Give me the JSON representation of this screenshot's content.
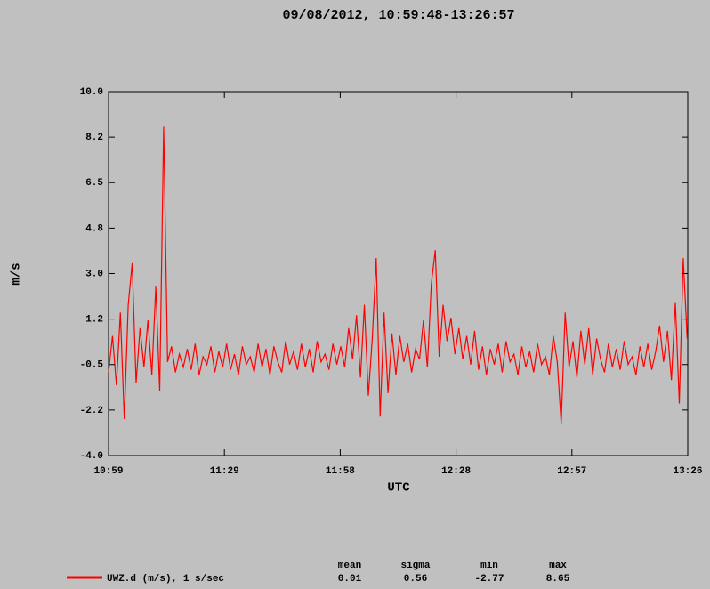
{
  "chart_data": {
    "type": "line",
    "title": "09/08/2012, 10:59:48-13:26:57",
    "x_label": "UTC",
    "y_label": "m/s",
    "x": [
      659.8,
      660.8,
      661.8,
      662.8,
      663.8,
      664.8,
      665.8,
      666.8,
      667.8,
      668.8,
      669.8,
      670.8,
      671.8,
      672.8,
      673.8,
      674.8,
      675.8,
      676.8,
      677.8,
      678.8,
      679.8,
      680.8,
      681.8,
      682.8,
      683.8,
      684.8,
      685.8,
      686.8,
      687.8,
      688.8,
      689.8,
      690.8,
      691.8,
      692.8,
      693.8,
      694.8,
      695.8,
      696.8,
      697.8,
      698.8,
      699.8,
      700.8,
      701.8,
      702.8,
      703.8,
      704.8,
      705.8,
      706.8,
      707.8,
      708.8,
      709.8,
      710.8,
      711.8,
      712.8,
      713.8,
      714.8,
      715.8,
      716.8,
      717.8,
      718.8,
      719.8,
      720.8,
      721.8,
      722.8,
      723.8,
      724.8,
      725.8,
      726.8,
      727.8,
      728.8,
      729.8,
      730.8,
      731.8,
      732.8,
      733.8,
      734.8,
      735.8,
      736.8,
      737.8,
      738.8,
      739.8,
      740.8,
      741.8,
      742.8,
      743.8,
      744.8,
      745.8,
      746.8,
      747.8,
      748.8,
      749.8,
      750.8,
      751.8,
      752.8,
      753.8,
      754.8,
      755.8,
      756.8,
      757.8,
      758.8,
      759.8,
      760.8,
      761.8,
      762.8,
      763.8,
      764.8,
      765.8,
      766.8,
      767.8,
      768.8,
      769.8,
      770.8,
      771.8,
      772.8,
      773.8,
      774.8,
      775.8,
      776.8,
      777.8,
      778.8,
      779.8,
      780.8,
      781.8,
      782.8,
      783.8,
      784.8,
      785.8,
      786.8,
      787.8,
      788.8,
      789.8,
      790.8,
      791.8,
      792.8,
      793.8,
      794.8,
      795.8,
      796.8,
      797.8,
      798.8,
      799.8,
      800.8,
      801.8,
      802.8,
      803.8,
      804.8,
      805.8,
      806.8
    ],
    "series": [
      {
        "name": "UWZ.d (m/s), 1 s/sec",
        "color": "#ff0000",
        "values": [
          -0.8,
          0.6,
          -1.3,
          1.5,
          -2.6,
          1.8,
          3.4,
          -1.2,
          0.9,
          -0.6,
          1.2,
          -0.9,
          2.5,
          -1.5,
          8.65,
          -0.4,
          0.2,
          -0.8,
          -0.1,
          -0.6,
          0.1,
          -0.7,
          0.3,
          -0.9,
          -0.2,
          -0.5,
          0.2,
          -0.8,
          0.0,
          -0.6,
          0.3,
          -0.7,
          -0.1,
          -0.9,
          0.2,
          -0.5,
          -0.2,
          -0.8,
          0.3,
          -0.6,
          0.1,
          -0.9,
          0.2,
          -0.4,
          -0.8,
          0.4,
          -0.5,
          0.0,
          -0.7,
          0.3,
          -0.6,
          0.1,
          -0.8,
          0.4,
          -0.4,
          -0.1,
          -0.7,
          0.3,
          -0.5,
          0.2,
          -0.6,
          0.9,
          -0.3,
          1.4,
          -1.0,
          1.8,
          -1.7,
          0.5,
          3.6,
          -2.5,
          1.5,
          -1.6,
          0.7,
          -0.9,
          0.6,
          -0.4,
          0.3,
          -0.8,
          0.1,
          -0.3,
          1.2,
          -0.6,
          2.6,
          3.9,
          -0.2,
          1.8,
          0.4,
          1.3,
          -0.1,
          0.9,
          -0.3,
          0.6,
          -0.5,
          0.8,
          -0.7,
          0.2,
          -0.9,
          0.1,
          -0.5,
          0.3,
          -0.8,
          0.4,
          -0.4,
          -0.1,
          -0.9,
          0.2,
          -0.6,
          0.0,
          -0.8,
          0.3,
          -0.5,
          -0.2,
          -0.9,
          0.6,
          -0.4,
          -2.77,
          1.5,
          -0.6,
          0.4,
          -1.0,
          0.8,
          -0.5,
          0.9,
          -0.9,
          0.5,
          -0.3,
          -0.8,
          0.3,
          -0.6,
          0.1,
          -0.7,
          0.4,
          -0.5,
          -0.2,
          -0.9,
          0.2,
          -0.6,
          0.3,
          -0.7,
          0.0,
          1.0,
          -0.4,
          0.8,
          -1.1,
          1.9,
          -2.0,
          3.6,
          0.5
        ]
      }
    ],
    "xlim": [
      659.8,
      806.95
    ],
    "ylim": [
      -4,
      10
    ],
    "xticks": [
      {
        "value": 659.8,
        "label": "10:59"
      },
      {
        "value": 689.23,
        "label": "11:29"
      },
      {
        "value": 718.66,
        "label": "11:58"
      },
      {
        "value": 748.09,
        "label": "12:28"
      },
      {
        "value": 777.52,
        "label": "12:57"
      },
      {
        "value": 806.95,
        "label": "13:26"
      }
    ],
    "yticks": [
      {
        "value": -4,
        "label": "-4.0"
      },
      {
        "value": -2.25,
        "label": "-2.2"
      },
      -0.5,
      {
        "value": 1.25,
        "label": "1.2"
      },
      {
        "value": 3,
        "label": "3.0"
      },
      {
        "value": 4.75,
        "label": "4.8"
      },
      6.5,
      {
        "value": 8.25,
        "label": "8.2"
      },
      {
        "value": 10,
        "label": "10.0"
      }
    ],
    "stats": [
      {
        "label": "mean",
        "value": 0.01
      },
      {
        "label": "sigma",
        "value": 0.56
      },
      {
        "label": "min",
        "value": -2.77
      },
      {
        "label": "max",
        "value": 8.65
      }
    ]
  }
}
